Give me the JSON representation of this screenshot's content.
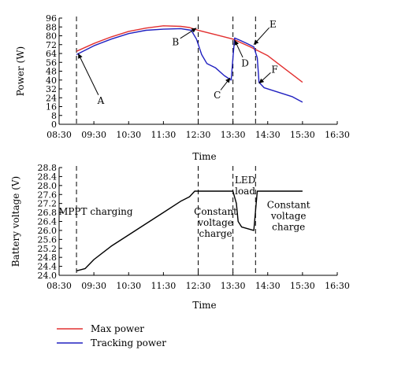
{
  "chart_data": [
    {
      "type": "line",
      "ylabel": "Power (W)",
      "xlabel": "Time",
      "x_ticks": [
        "08:30",
        "09:30",
        "10:30",
        "11:30",
        "12:30",
        "13:30",
        "14:30",
        "15:30",
        "16:30"
      ],
      "y_ticks": [
        "0",
        "8",
        "16",
        "24",
        "32",
        "40",
        "48",
        "56",
        "64",
        "72",
        "80",
        "88",
        "96"
      ],
      "xlim_hours": [
        8.5,
        16.5
      ],
      "ylim": [
        0,
        96
      ],
      "x_axis_format": "HH:MM",
      "series": [
        {
          "name": "Max power",
          "color": "#e23030",
          "points": [
            [
              9.0,
              66
            ],
            [
              9.5,
              73
            ],
            [
              10.0,
              79
            ],
            [
              10.5,
              84
            ],
            [
              11.0,
              87
            ],
            [
              11.5,
              89
            ],
            [
              12.0,
              88.5
            ],
            [
              12.25,
              87.5
            ],
            [
              12.5,
              85
            ],
            [
              13.0,
              81
            ],
            [
              13.5,
              77
            ],
            [
              14.0,
              70
            ],
            [
              14.5,
              62
            ],
            [
              15.0,
              50
            ],
            [
              15.25,
              44
            ],
            [
              15.5,
              38
            ]
          ]
        },
        {
          "name": "Tracking power",
          "color": "#2020c0",
          "points": [
            [
              9.0,
              63
            ],
            [
              9.5,
              71
            ],
            [
              10.0,
              77
            ],
            [
              10.5,
              82
            ],
            [
              11.0,
              85
            ],
            [
              11.5,
              86
            ],
            [
              12.0,
              86.5
            ],
            [
              12.3,
              85
            ],
            [
              12.45,
              77
            ],
            [
              12.6,
              63
            ],
            [
              12.75,
              55
            ],
            [
              13.0,
              51
            ],
            [
              13.25,
              44
            ],
            [
              13.45,
              40
            ],
            [
              13.5,
              60
            ],
            [
              13.55,
              78
            ],
            [
              13.7,
              76
            ],
            [
              13.9,
              73
            ],
            [
              14.1,
              70
            ],
            [
              14.2,
              60
            ],
            [
              14.25,
              38
            ],
            [
              14.4,
              33
            ],
            [
              14.8,
              29
            ],
            [
              15.2,
              25
            ],
            [
              15.5,
              20
            ]
          ]
        }
      ],
      "dashed_lines_hours": [
        9.0,
        12.5,
        13.5,
        14.15
      ],
      "annotations": [
        {
          "text": "A",
          "point": [
            9.05,
            64
          ],
          "label_at": [
            9.7,
            22
          ]
        },
        {
          "text": "B",
          "point": [
            12.45,
            87
          ],
          "label_at": [
            11.85,
            75
          ]
        },
        {
          "text": "C",
          "point": [
            13.42,
            42
          ],
          "label_at": [
            13.05,
            27
          ]
        },
        {
          "text": "D",
          "point": [
            13.55,
            76
          ],
          "label_at": [
            13.85,
            56
          ]
        },
        {
          "text": "E",
          "point": [
            14.1,
            72
          ],
          "label_at": [
            14.65,
            91
          ]
        },
        {
          "text": "F",
          "point": [
            14.25,
            37
          ],
          "label_at": [
            14.7,
            50
          ]
        }
      ]
    },
    {
      "type": "line",
      "ylabel": "Battery voltage (V)",
      "xlabel": "Time",
      "x_ticks": [
        "08:30",
        "09:30",
        "10:30",
        "11:30",
        "12:30",
        "13:30",
        "14:30",
        "15:30",
        "16:30"
      ],
      "y_ticks": [
        "24.0",
        "24.4",
        "24.8",
        "25.2",
        "25.6",
        "26.0",
        "26.4",
        "26.8",
        "27.2",
        "27.6",
        "28.0",
        "28.4",
        "28.8"
      ],
      "xlim_hours": [
        8.5,
        16.5
      ],
      "ylim": [
        24.0,
        28.8
      ],
      "series": [
        {
          "name": "",
          "color": "#000000",
          "points": [
            [
              9.0,
              24.2
            ],
            [
              9.25,
              24.3
            ],
            [
              9.5,
              24.7
            ],
            [
              10.0,
              25.3
            ],
            [
              10.5,
              25.8
            ],
            [
              11.0,
              26.3
            ],
            [
              11.5,
              26.8
            ],
            [
              12.0,
              27.3
            ],
            [
              12.25,
              27.5
            ],
            [
              12.4,
              27.75
            ],
            [
              13.0,
              27.75
            ],
            [
              13.5,
              27.75
            ],
            [
              13.6,
              27.2
            ],
            [
              13.65,
              26.4
            ],
            [
              13.75,
              26.15
            ],
            [
              14.1,
              26.0
            ],
            [
              14.2,
              27.75
            ],
            [
              15.5,
              27.75
            ]
          ]
        }
      ],
      "dashed_lines_hours": [
        9.0,
        12.5,
        13.5,
        14.15
      ],
      "annotations": [
        {
          "text": "MPPT charging",
          "label_at": [
            9.55,
            26.7
          ]
        },
        {
          "text": "Constant voltage charge",
          "label_at": [
            13.0,
            26.7
          ]
        },
        {
          "text": "LED load",
          "label_at": [
            13.85,
            28.1
          ]
        },
        {
          "text": "Constant voltage charge",
          "label_at": [
            15.1,
            27.0
          ]
        }
      ]
    }
  ]
}
